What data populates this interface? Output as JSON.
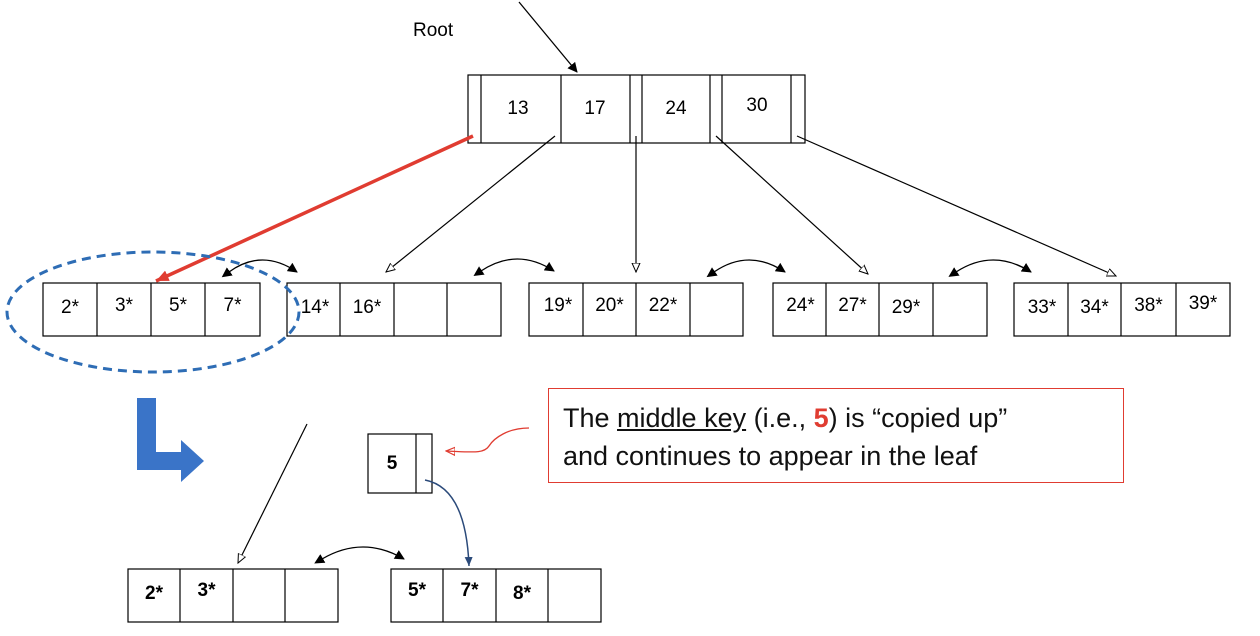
{
  "root_label": "Root",
  "root_node": {
    "keys": [
      "13",
      "17",
      "24",
      "30"
    ]
  },
  "leaves": [
    {
      "entries": [
        "2*",
        "3*",
        "5*",
        "7*"
      ]
    },
    {
      "entries": [
        "14*",
        "16*",
        "",
        ""
      ]
    },
    {
      "entries": [
        "19*",
        "20*",
        "22*",
        ""
      ]
    },
    {
      "entries": [
        "24*",
        "27*",
        "29*",
        ""
      ]
    },
    {
      "entries": [
        "33*",
        "34*",
        "38*",
        "39*"
      ]
    }
  ],
  "split": {
    "copied_key": "5",
    "left_leaf": [
      "2*",
      "3*",
      "",
      ""
    ],
    "right_leaf": [
      "5*",
      "7*",
      "8*",
      ""
    ]
  },
  "note": {
    "prefix": "The ",
    "underlined": "middle key",
    "mid1": " (i.e., ",
    "highlight": "5",
    "mid2": ") is “copied up”",
    "line2": "and continues to appear in the leaf"
  },
  "colors": {
    "accent_red": "#e03c31",
    "blue_dashed": "#2e6db5",
    "blue_arrow": "#3a74c8",
    "navy_arrow": "#2b4a7a"
  }
}
